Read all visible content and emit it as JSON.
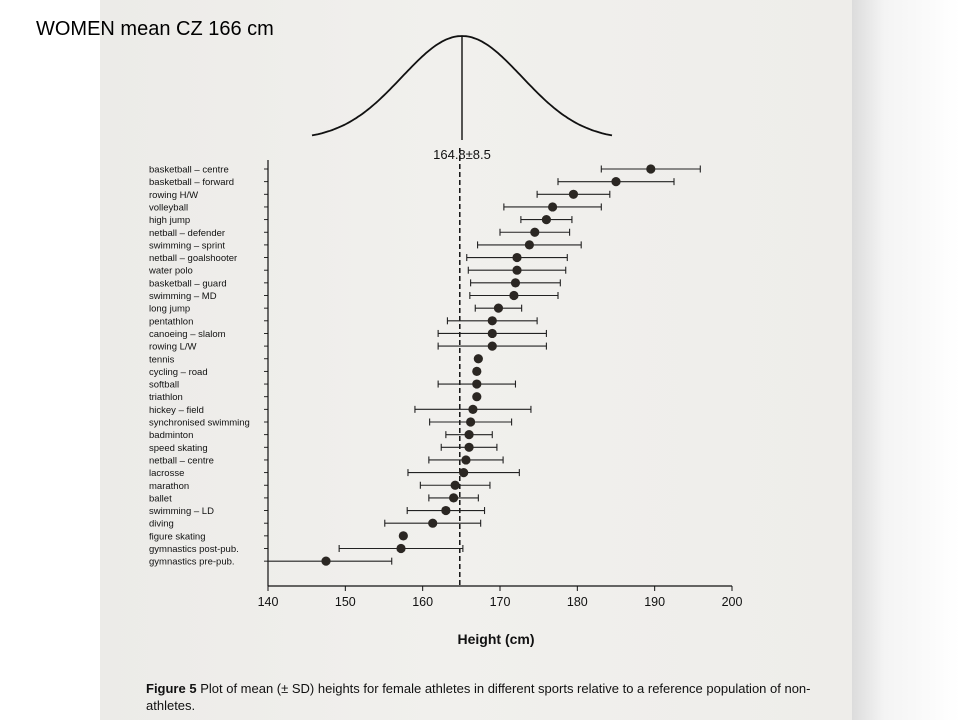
{
  "slide_title": "WOMEN mean CZ 166 cm",
  "caption": {
    "figure_label": "Figure 5",
    "text": "Plot of mean (± SD) heights for female athletes in different sports relative to a reference population of non-athletes."
  },
  "chart_data": {
    "type": "scatter",
    "title": "",
    "xlabel": "Height (cm)",
    "ylabel": "",
    "xlim": [
      140,
      200
    ],
    "x_ticks": [
      "140",
      "150",
      "160",
      "170",
      "180",
      "190",
      "200"
    ],
    "reference": {
      "mean": 164.8,
      "sd": 8.5,
      "label": "164.8±8.5"
    },
    "categories": [
      "basketball – centre",
      "basketball – forward",
      "rowing H/W",
      "volleyball",
      "high jump",
      "netball – defender",
      "swimming – sprint",
      "netball – goalshooter",
      "water polo",
      "basketball – guard",
      "swimming – MD",
      "long jump",
      "pentathlon",
      "canoeing – slalom",
      "rowing L/W",
      "tennis",
      "cycling – road",
      "softball",
      "triathlon",
      "hickey – field",
      "synchronised swimming",
      "badminton",
      "speed skating",
      "netball – centre",
      "lacrosse",
      "marathon",
      "ballet",
      "swimming – LD",
      "diving",
      "figure skating",
      "gymnastics post-pub.",
      "gymnastics pre-pub."
    ],
    "series": [
      {
        "means": [
          189.5,
          185.0,
          179.5,
          176.8,
          176.0,
          174.5,
          173.8,
          172.2,
          172.2,
          172.0,
          171.8,
          169.8,
          169.0,
          169.0,
          169.0,
          167.2,
          167.0,
          167.0,
          167.0,
          166.5,
          166.2,
          166.0,
          166.0,
          165.6,
          165.3,
          164.2,
          164.0,
          163.0,
          161.3,
          157.5,
          157.2,
          147.5
        ],
        "sd": [
          6.4,
          7.5,
          4.7,
          6.3,
          3.3,
          4.5,
          6.7,
          6.5,
          6.3,
          5.8,
          5.7,
          3.0,
          5.8,
          7.0,
          7.0,
          null,
          null,
          5.0,
          null,
          7.5,
          5.3,
          3.0,
          3.6,
          4.8,
          7.2,
          4.5,
          3.2,
          5.0,
          6.2,
          null,
          8.0,
          8.5
        ]
      }
    ],
    "grid": false,
    "legend": "none"
  }
}
